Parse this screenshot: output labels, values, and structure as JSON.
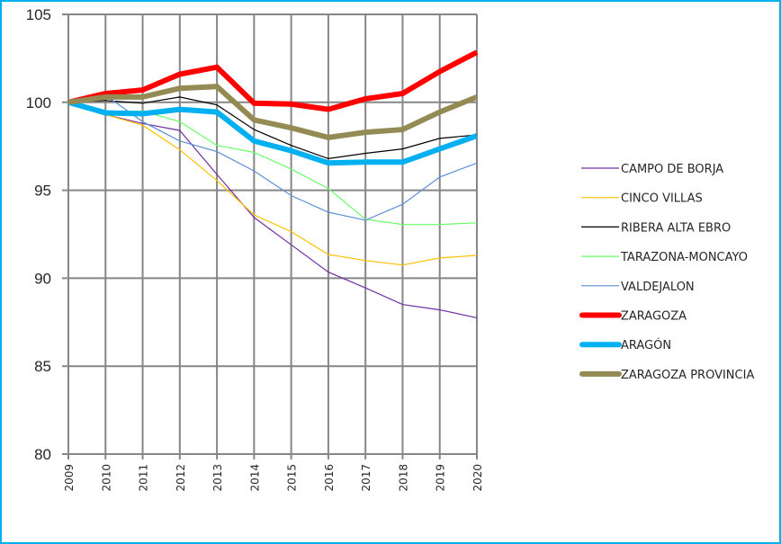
{
  "chart_data": {
    "type": "line",
    "title": "",
    "xlabel": "",
    "ylabel": "",
    "ylim": [
      80,
      105
    ],
    "yticks": [
      "80",
      "85",
      "90",
      "95",
      "100",
      "105"
    ],
    "ytick_values": [
      80,
      85,
      90,
      95,
      100,
      105
    ],
    "categories": [
      "2009",
      "2010",
      "2011",
      "2012",
      "2013",
      "2014",
      "2015",
      "2016",
      "2017",
      "2018",
      "2019",
      "2020"
    ],
    "grid": true,
    "legend_position": "right",
    "series": [
      {
        "name": "CAMPO DE BORJA",
        "color": "#7030a0",
        "weight": "thin",
        "values": [
          100,
          99.3,
          98.8,
          98.4,
          95.9,
          93.45,
          91.9,
          90.35,
          89.45,
          88.5,
          88.2,
          87.75
        ]
      },
      {
        "name": "CINCO VILLAS",
        "color": "#ffc000",
        "weight": "thin",
        "values": [
          100,
          99.3,
          98.7,
          97.3,
          95.55,
          93.6,
          92.65,
          91.35,
          91.0,
          90.75,
          91.15,
          91.3
        ]
      },
      {
        "name": "RIBERA ALTA EBRO",
        "color": "#000000",
        "weight": "thin",
        "values": [
          100,
          100.1,
          99.95,
          100.3,
          99.85,
          98.45,
          97.55,
          96.8,
          97.1,
          97.35,
          97.95,
          98.15
        ]
      },
      {
        "name": "TARAZONA-MONCAYO",
        "color": "#66ff66",
        "weight": "thin",
        "values": [
          100,
          99.5,
          99.5,
          98.9,
          97.55,
          97.15,
          96.2,
          95.1,
          93.35,
          93.05,
          93.05,
          93.15
        ]
      },
      {
        "name": "VALDEJALON",
        "color": "#5b8fd6",
        "weight": "thin",
        "values": [
          100,
          100.4,
          98.9,
          97.8,
          97.2,
          96.1,
          94.7,
          93.75,
          93.3,
          94.2,
          95.75,
          96.55
        ]
      },
      {
        "name": "ZARAGOZA",
        "color": "#ff0000",
        "weight": "thick",
        "values": [
          100,
          100.5,
          100.7,
          101.6,
          102.0,
          99.95,
          99.9,
          99.6,
          100.2,
          100.5,
          101.75,
          102.85
        ]
      },
      {
        "name": "ARAGÓN",
        "color": "#00b0f0",
        "weight": "thick",
        "values": [
          100,
          99.4,
          99.35,
          99.6,
          99.45,
          97.8,
          97.25,
          96.55,
          96.6,
          96.6,
          97.35,
          98.1
        ]
      },
      {
        "name": "ZARAGOZA PROVINCIA",
        "color": "#948a54",
        "weight": "thick",
        "values": [
          100,
          100.3,
          100.3,
          100.8,
          100.9,
          99.0,
          98.55,
          98.0,
          98.3,
          98.45,
          99.45,
          100.3
        ]
      }
    ]
  }
}
